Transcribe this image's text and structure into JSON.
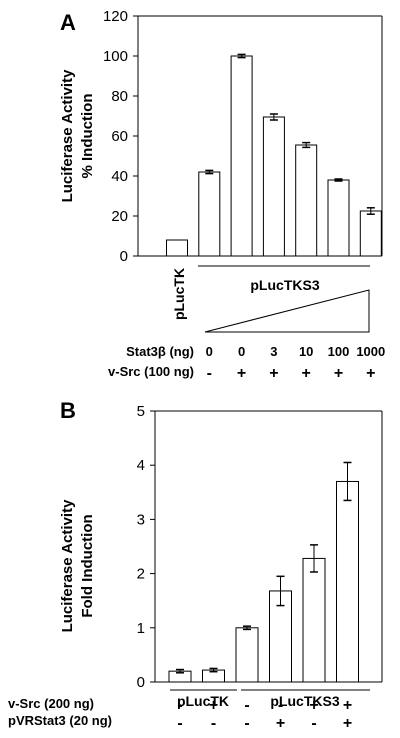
{
  "chart_data": [
    {
      "type": "bar",
      "panel": "A",
      "ylabel_line1": "Luciferase Activity",
      "ylabel_line2": "% Induction",
      "ylim": [
        0,
        120
      ],
      "yticks": [
        "0",
        "20",
        "40",
        "60",
        "80",
        "100",
        "120"
      ],
      "ytick_values": [
        0,
        20,
        40,
        60,
        80,
        100,
        120
      ],
      "values": [
        8,
        42,
        100,
        69.5,
        55.5,
        38,
        22.5
      ],
      "errors": [
        0,
        0.8,
        0.8,
        1.5,
        1.2,
        0.5,
        1.6
      ],
      "group_labels": [
        "pLucTK",
        "pLucTKS3"
      ],
      "cond_labels": [
        "Stat3β (ng)",
        "v-Src (100 ng)"
      ],
      "stat3_doses": [
        "",
        "0",
        "0",
        "3",
        "10",
        "100",
        "1000"
      ],
      "vsrc_signs": [
        "",
        "-",
        "+",
        "+",
        "+",
        "+",
        "+"
      ]
    },
    {
      "type": "bar",
      "panel": "B",
      "ylabel_line1": "Luciferase Activity",
      "ylabel_line2": "Fold Induction",
      "ylim": [
        0,
        5
      ],
      "yticks": [
        "0",
        "1",
        "2",
        "3",
        "4",
        "5"
      ],
      "ytick_values": [
        0,
        1,
        2,
        3,
        4,
        5
      ],
      "values": [
        0.2,
        0.22,
        1.0,
        1.68,
        2.28,
        3.7
      ],
      "errors": [
        0.03,
        0.03,
        0.03,
        0.27,
        0.25,
        0.35
      ],
      "group_labels": [
        "pLucTK",
        "pLucTKS3"
      ],
      "cond_labels": [
        "v-Src (200 ng)",
        "pVRStat3 (20 ng)"
      ],
      "vsrc_signs": [
        "-",
        "+",
        "-",
        "-",
        "+",
        "+"
      ],
      "pvrstat3_signs": [
        "-",
        "-",
        "-",
        "+",
        "-",
        "+"
      ]
    }
  ]
}
